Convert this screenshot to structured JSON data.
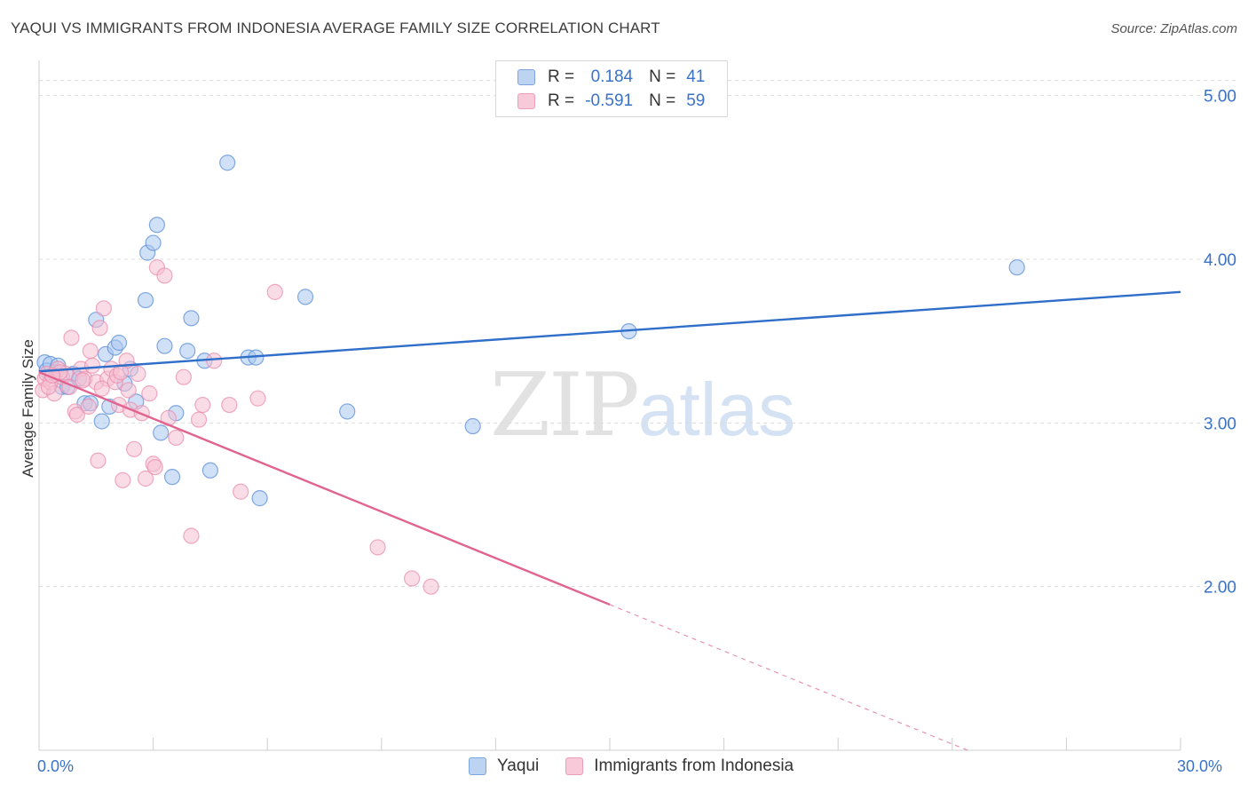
{
  "header": {
    "title": "YAQUI VS IMMIGRANTS FROM INDONESIA AVERAGE FAMILY SIZE CORRELATION CHART",
    "source": "Source: ZipAtlas.com"
  },
  "legend": {
    "r_label": "R =",
    "n_label": "N =",
    "series": [
      {
        "name": "Yaqui",
        "r": "0.184",
        "n": "41"
      },
      {
        "name": "Immigrants from Indonesia",
        "r": "-0.591",
        "n": "59"
      }
    ]
  },
  "watermark": {
    "zip": "ZIP",
    "atlas": "atlas"
  },
  "colors": {
    "blue": "#5b8fd8",
    "blue_fill": "#a9c6ee",
    "blue_line": "#2f6ec9",
    "pink": "#e98fae",
    "pink_fill": "#f6bfd1",
    "pink_line": "#e0648f",
    "tick_text": "#3a72c9",
    "grid": "#dcdcdc"
  },
  "chart_data": {
    "type": "scatter",
    "title": "YAQUI VS IMMIGRANTS FROM INDONESIA AVERAGE FAMILY SIZE CORRELATION CHART",
    "xlabel": "",
    "ylabel": "Average Family Size",
    "xlim": [
      0,
      30
    ],
    "ylim": [
      1.0,
      5.15
    ],
    "x_tick_labels": [
      "0.0%",
      "30.0%"
    ],
    "y_ticks": [
      2.0,
      3.0,
      4.0,
      5.0
    ],
    "y_tick_labels": [
      "2.00",
      "3.00",
      "4.00",
      "5.00"
    ],
    "series": [
      {
        "name": "Yaqui",
        "points": [
          [
            0.15,
            3.37
          ],
          [
            0.2,
            3.32
          ],
          [
            0.3,
            3.36
          ],
          [
            0.45,
            3.31
          ],
          [
            0.6,
            3.22
          ],
          [
            0.75,
            3.22
          ],
          [
            0.9,
            3.3
          ],
          [
            1.05,
            3.27
          ],
          [
            1.2,
            3.12
          ],
          [
            1.35,
            3.12
          ],
          [
            1.5,
            3.63
          ],
          [
            1.65,
            3.01
          ],
          [
            1.75,
            3.42
          ],
          [
            1.85,
            3.1
          ],
          [
            2.0,
            3.46
          ],
          [
            2.1,
            3.49
          ],
          [
            2.25,
            3.24
          ],
          [
            2.4,
            3.33
          ],
          [
            2.55,
            3.13
          ],
          [
            2.8,
            3.75
          ],
          [
            2.85,
            4.04
          ],
          [
            3.0,
            4.1
          ],
          [
            3.1,
            4.21
          ],
          [
            3.3,
            3.47
          ],
          [
            3.2,
            2.94
          ],
          [
            3.5,
            2.67
          ],
          [
            3.6,
            3.06
          ],
          [
            3.9,
            3.44
          ],
          [
            4.0,
            3.64
          ],
          [
            4.35,
            3.38
          ],
          [
            4.5,
            2.71
          ],
          [
            4.95,
            4.59
          ],
          [
            5.5,
            3.4
          ],
          [
            5.7,
            3.4
          ],
          [
            5.8,
            2.54
          ],
          [
            7.0,
            3.77
          ],
          [
            8.1,
            3.07
          ],
          [
            11.4,
            2.98
          ],
          [
            15.5,
            3.56
          ],
          [
            25.7,
            3.95
          ],
          [
            0.5,
            3.35
          ]
        ],
        "trend": {
          "x0": 0.0,
          "y0": 3.315,
          "x1": 30.0,
          "y1": 3.8
        }
      },
      {
        "name": "Immigrants from Indonesia",
        "points": [
          [
            0.1,
            3.2
          ],
          [
            0.15,
            3.27
          ],
          [
            0.2,
            3.3
          ],
          [
            0.3,
            3.25
          ],
          [
            0.4,
            3.18
          ],
          [
            0.5,
            3.33
          ],
          [
            0.6,
            3.28
          ],
          [
            0.7,
            3.3
          ],
          [
            0.8,
            3.22
          ],
          [
            0.85,
            3.52
          ],
          [
            0.95,
            3.07
          ],
          [
            1.0,
            3.05
          ],
          [
            1.1,
            3.33
          ],
          [
            1.2,
            3.27
          ],
          [
            1.3,
            3.1
          ],
          [
            1.35,
            3.44
          ],
          [
            1.4,
            3.35
          ],
          [
            1.5,
            3.25
          ],
          [
            1.55,
            2.77
          ],
          [
            1.6,
            3.58
          ],
          [
            1.7,
            3.7
          ],
          [
            1.8,
            3.27
          ],
          [
            1.9,
            3.33
          ],
          [
            2.0,
            3.25
          ],
          [
            2.05,
            3.29
          ],
          [
            2.1,
            3.11
          ],
          [
            2.2,
            2.65
          ],
          [
            2.3,
            3.38
          ],
          [
            2.35,
            3.2
          ],
          [
            2.4,
            3.08
          ],
          [
            2.5,
            2.84
          ],
          [
            2.6,
            3.3
          ],
          [
            2.7,
            3.06
          ],
          [
            2.8,
            2.66
          ],
          [
            2.9,
            3.18
          ],
          [
            3.0,
            2.75
          ],
          [
            3.05,
            2.73
          ],
          [
            3.1,
            3.95
          ],
          [
            3.3,
            3.9
          ],
          [
            3.4,
            3.03
          ],
          [
            3.6,
            2.91
          ],
          [
            3.8,
            3.28
          ],
          [
            4.0,
            2.31
          ],
          [
            4.2,
            3.02
          ],
          [
            4.3,
            3.11
          ],
          [
            4.6,
            3.38
          ],
          [
            5.0,
            3.11
          ],
          [
            5.3,
            2.58
          ],
          [
            5.75,
            3.15
          ],
          [
            6.2,
            3.8
          ],
          [
            8.9,
            2.24
          ],
          [
            9.8,
            2.05
          ],
          [
            10.3,
            2.0
          ],
          [
            0.25,
            3.22
          ],
          [
            0.55,
            3.31
          ],
          [
            1.15,
            3.26
          ],
          [
            1.65,
            3.21
          ],
          [
            2.15,
            3.31
          ],
          [
            0.35,
            3.29
          ]
        ],
        "trend": {
          "x0": 0.0,
          "y0": 3.31,
          "x1": 15.0,
          "y1": 1.89
        },
        "trend_dashed": {
          "x0": 15.0,
          "y0": 1.89,
          "x1": 30.0,
          "y1": 0.47
        }
      }
    ]
  }
}
